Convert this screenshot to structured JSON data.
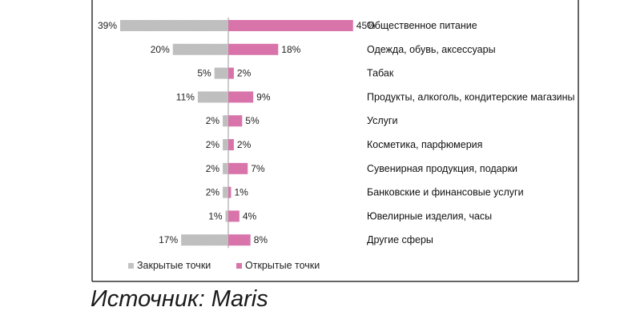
{
  "source": "Источник: Maris",
  "colors": {
    "closed": "#c3c3c3",
    "open": "#d874aa",
    "frame": "#333333",
    "axis": "#999999"
  },
  "chart_data": {
    "type": "bar",
    "orientation": "horizontal-diverging",
    "categories": [
      "Общественное питание",
      "Одежда, обувь, аксессуары",
      "Табак",
      "Продукты, алкоголь, кондитерские магазины",
      "Услуги",
      "Косметика, парфюмерия",
      "Сувенирная продукция, подарки",
      "Банковские и финансовые услуги",
      "Ювелирные изделия, часы",
      "Другие сферы"
    ],
    "series": [
      {
        "name": "Закрытые точки",
        "direction": "left",
        "values": [
          39,
          20,
          5,
          11,
          2,
          2,
          2,
          2,
          1,
          17
        ],
        "labels": [
          "39%",
          "20%",
          "5%",
          "11%",
          "2%",
          "2%",
          "2%",
          "2%",
          "1%",
          "17%"
        ]
      },
      {
        "name": "Открытые точки",
        "direction": "right",
        "values": [
          45,
          18,
          2,
          9,
          5,
          2,
          7,
          1,
          4,
          8
        ],
        "labels": [
          "45%",
          "18%",
          "2%",
          "9%",
          "5%",
          "2%",
          "7%",
          "1%",
          "4%",
          "8%"
        ]
      }
    ],
    "legend_position": "bottom-left",
    "grid": false
  }
}
